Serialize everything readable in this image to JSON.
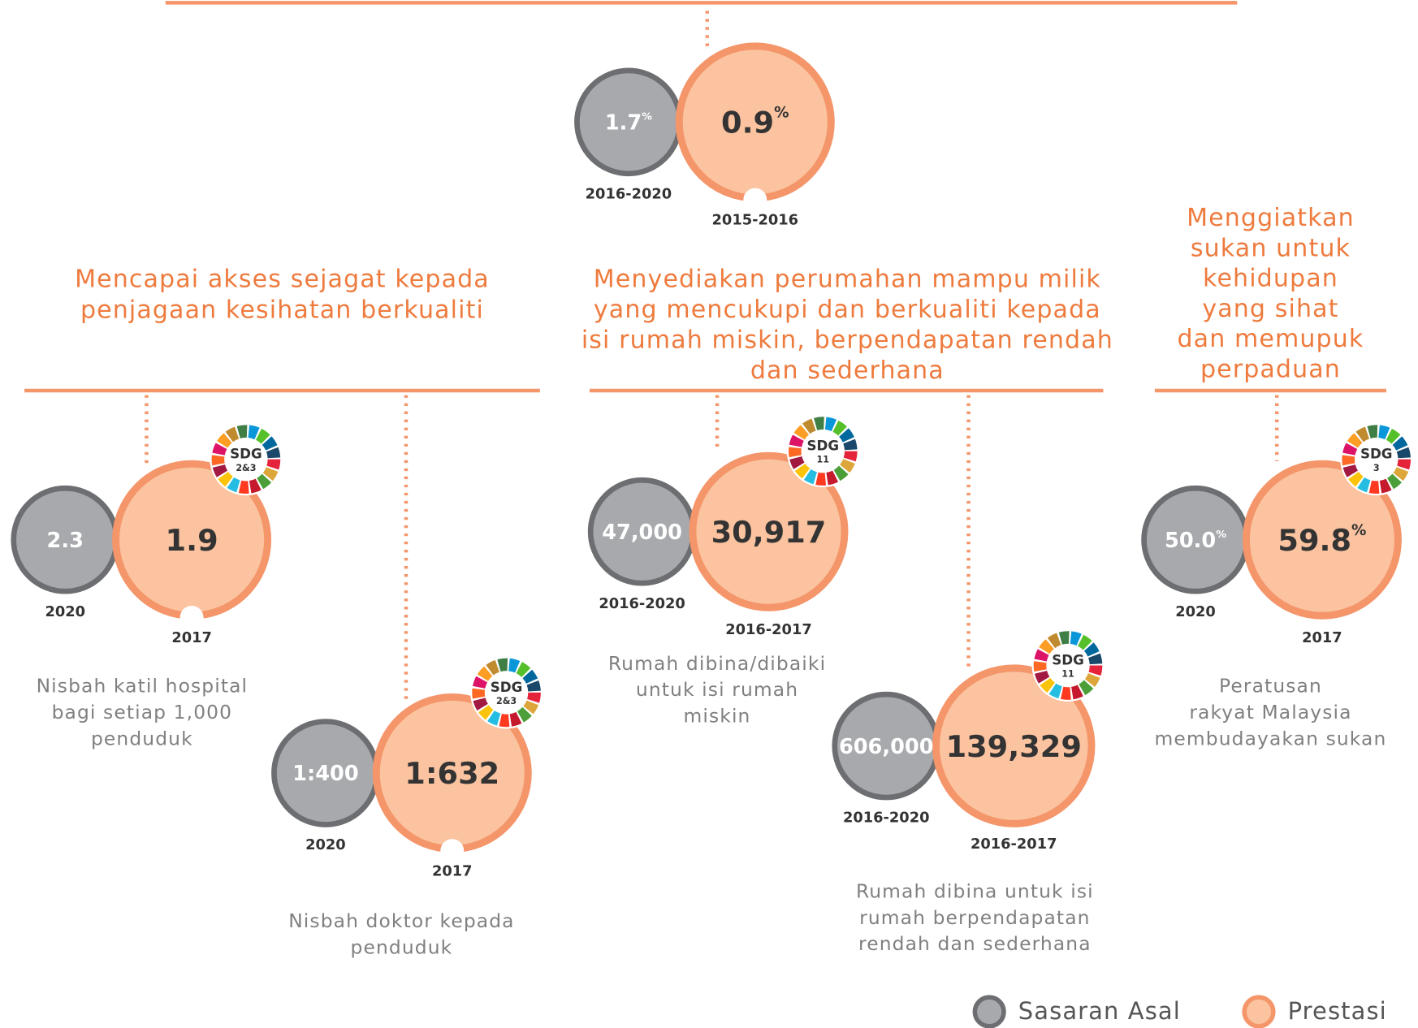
{
  "top": {
    "target": {
      "value": "1.7",
      "unit": "%",
      "period": "2016-2020"
    },
    "actual": {
      "value": "0.9",
      "unit": "%",
      "period": "2015-2016"
    }
  },
  "sections": [
    {
      "heading": [
        "Mencapai akses sejagat kepada",
        "penjagaan kesihatan berkualiti"
      ],
      "items": [
        {
          "target": {
            "value": "2.3",
            "period": "2020"
          },
          "actual": {
            "value": "1.9",
            "period": "2017"
          },
          "sdg": {
            "label": "SDG",
            "number": "2&3"
          },
          "description": [
            "Nisbah katil hospital",
            "bagi setiap 1,000",
            "penduduk"
          ]
        },
        {
          "target": {
            "value": "1:400",
            "period": "2020"
          },
          "actual": {
            "value": "1:632",
            "period": "2017"
          },
          "sdg": {
            "label": "SDG",
            "number": "2&3"
          },
          "description": [
            "Nisbah doktor kepada",
            "penduduk"
          ]
        }
      ]
    },
    {
      "heading": [
        "Menyediakan perumahan mampu milik",
        "yang mencukupi dan berkualiti kepada",
        "isi rumah miskin, berpendapatan rendah",
        "dan sederhana"
      ],
      "items": [
        {
          "target": {
            "value": "47,000",
            "period": "2016-2020"
          },
          "actual": {
            "value": "30,917",
            "period": "2016-2017"
          },
          "sdg": {
            "label": "SDG",
            "number": "11"
          },
          "description": [
            "Rumah dibina/dibaiki",
            "untuk isi rumah",
            "miskin"
          ]
        },
        {
          "target": {
            "value": "606,000",
            "period": "2016-2020"
          },
          "actual": {
            "value": "139,329",
            "period": "2016-2017"
          },
          "sdg": {
            "label": "SDG",
            "number": "11"
          },
          "description": [
            "Rumah dibina untuk isi",
            "rumah berpendapatan",
            "rendah dan sederhana"
          ]
        }
      ]
    },
    {
      "heading": [
        "Menggiatkan",
        "sukan untuk",
        "kehidupan",
        "yang sihat",
        "dan memupuk",
        "perpaduan"
      ],
      "items": [
        {
          "target": {
            "value": "50.0",
            "unit": "%",
            "period": "2020"
          },
          "actual": {
            "value": "59.8",
            "unit": "%",
            "period": "2017"
          },
          "sdg": {
            "label": "SDG",
            "number": "3"
          },
          "description": [
            "Peratusan",
            "rakyat Malaysia",
            "membudayakan sukan"
          ]
        }
      ]
    }
  ],
  "legend": [
    "Sasaran Asal",
    "Prestasi"
  ]
}
